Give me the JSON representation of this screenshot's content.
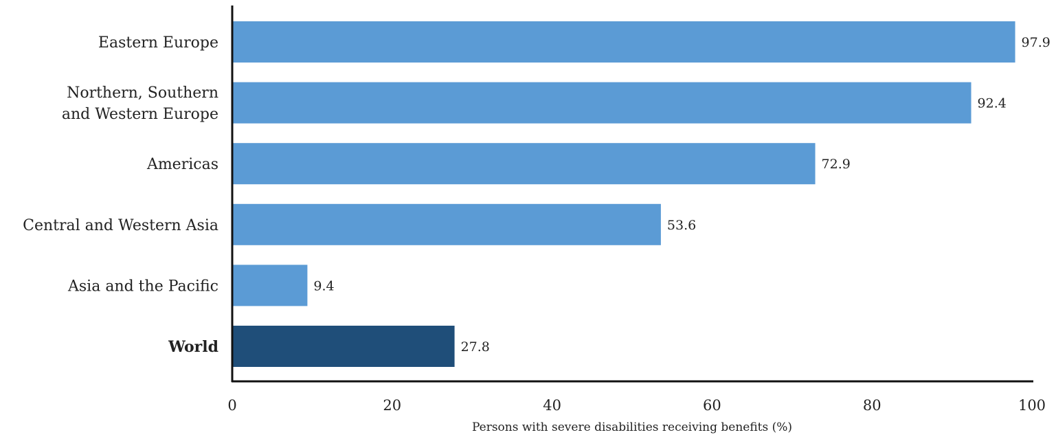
{
  "chart_data": {
    "type": "bar",
    "orientation": "horizontal",
    "title": "",
    "xlabel": "Persons with severe disabilities receiving benefits (%)",
    "ylabel": "",
    "xlim": [
      0,
      100
    ],
    "xticks": [
      0,
      20,
      40,
      60,
      80,
      100
    ],
    "grid": false,
    "legend": "none",
    "categories": [
      [
        "Eastern Europe"
      ],
      [
        "Northern, Southern",
        "and Western Europe"
      ],
      [
        "Americas"
      ],
      [
        "Central and Western Asia"
      ],
      [
        "Asia and the Pacific"
      ],
      [
        "World"
      ]
    ],
    "values": [
      97.9,
      92.4,
      72.9,
      53.6,
      9.4,
      27.8
    ],
    "value_labels": [
      "97.9",
      "92.4",
      "72.9",
      "53.6",
      "9.4",
      "27.8"
    ],
    "bold_categories": [
      5
    ],
    "colors": {
      "bar": "#5b9bd5",
      "highlight_bar": "#1f4e79",
      "axis": "#111111"
    }
  }
}
